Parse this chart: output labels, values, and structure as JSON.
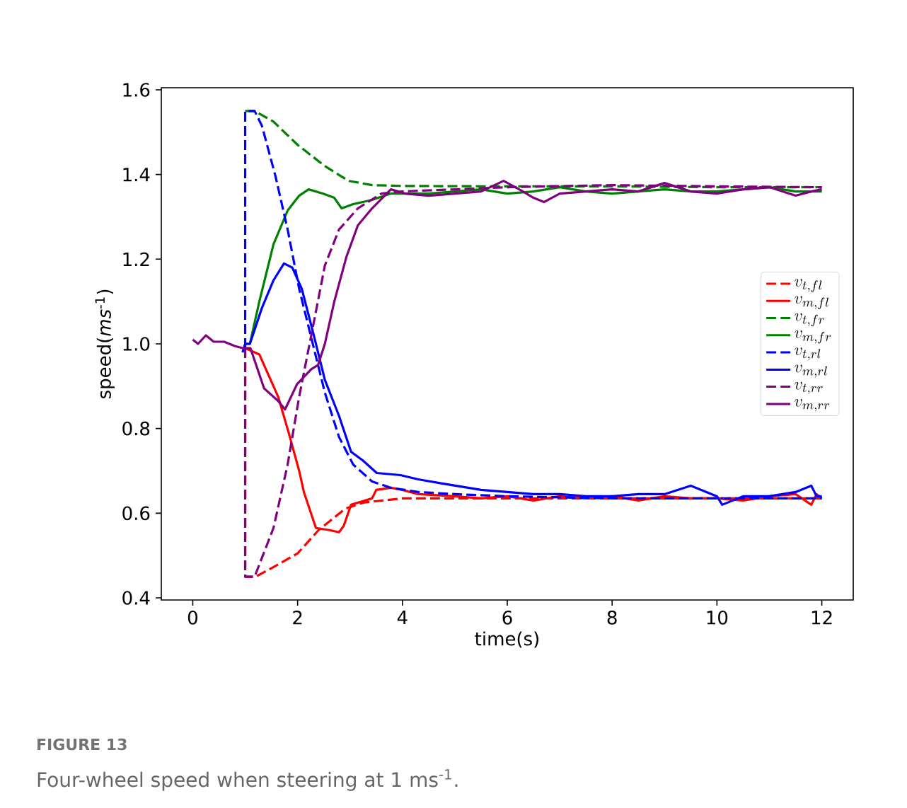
{
  "chart_data": {
    "type": "line",
    "xlabel": "time(s)",
    "ylabel": "speed(*ms*$^{-1}$)",
    "xlim": [
      -0.6,
      12.6
    ],
    "ylim": [
      0.395,
      1.605
    ],
    "xticks": [
      0,
      2,
      4,
      6,
      8,
      10,
      12
    ],
    "yticks": [
      0.4,
      0.6,
      0.8,
      {
        "value": 1.0,
        "label": "1.0"
      },
      1.2,
      1.4,
      1.6
    ],
    "legend": "right",
    "annotations": [
      "FIGURE 13",
      "Four-wheel speed when steering at 1 ms$^{-1}$."
    ],
    "series": [
      {
        "name": "v_{t,fl}",
        "color": "#ff0000",
        "line_style": "dashed",
        "x": [
          1.0,
          1.0,
          1.2,
          1.5,
          2.0,
          2.4,
          2.9,
          3.25,
          4,
          5,
          6,
          8,
          10,
          12
        ],
        "values": [
          0.99,
          0.45,
          0.45,
          0.47,
          0.505,
          0.56,
          0.61,
          0.625,
          0.635,
          0.635,
          0.635,
          0.635,
          0.635,
          0.635
        ]
      },
      {
        "name": "v_{m,fl}",
        "color": "#ff0000",
        "line_style": "solid",
        "x": [
          1.0,
          1.27,
          1.63,
          1.83,
          2.03,
          2.12,
          2.35,
          2.61,
          2.79,
          2.88,
          3.02,
          3.42,
          3.5,
          3.78,
          4,
          4.3,
          5,
          5.5,
          6,
          6.5,
          7,
          7.5,
          8,
          8.5,
          9,
          9.5,
          10,
          10.5,
          11,
          11.5,
          11.8,
          11.9,
          12
        ],
        "values": [
          0.99,
          0.975,
          0.875,
          0.79,
          0.7,
          0.65,
          0.565,
          0.56,
          0.555,
          0.57,
          0.62,
          0.635,
          0.655,
          0.66,
          0.655,
          0.645,
          0.64,
          0.635,
          0.64,
          0.63,
          0.64,
          0.635,
          0.64,
          0.63,
          0.64,
          0.635,
          0.635,
          0.63,
          0.64,
          0.645,
          0.62,
          0.645,
          0.635
        ]
      },
      {
        "name": "v_{t,fr}",
        "color": "#008000",
        "line_style": "dashed",
        "x": [
          1.0,
          1.18,
          1.54,
          2.0,
          2.52,
          2.97,
          3.42,
          4,
          6,
          8,
          10,
          12
        ],
        "values": [
          1.55,
          1.55,
          1.525,
          1.47,
          1.42,
          1.385,
          1.375,
          1.373,
          1.372,
          1.372,
          1.37,
          1.37
        ]
      },
      {
        "name": "v_{m,fr}",
        "color": "#008000",
        "line_style": "solid",
        "x": [
          1.0,
          1.09,
          1.27,
          1.54,
          1.81,
          2.03,
          2.21,
          2.48,
          2.7,
          2.84,
          3.06,
          3.42,
          3.78,
          4.5,
          5,
          5.5,
          6,
          6.5,
          7,
          7.5,
          8,
          8.5,
          9,
          9.5,
          10,
          10.5,
          11,
          11.5,
          12
        ],
        "values": [
          1.0,
          1.0,
          1.1,
          1.235,
          1.315,
          1.35,
          1.365,
          1.355,
          1.345,
          1.32,
          1.33,
          1.34,
          1.355,
          1.355,
          1.36,
          1.365,
          1.355,
          1.36,
          1.37,
          1.36,
          1.355,
          1.36,
          1.365,
          1.36,
          1.36,
          1.365,
          1.37,
          1.36,
          1.36
        ]
      },
      {
        "name": "v_{t,rl}",
        "color": "#0000ff",
        "line_style": "dashed",
        "x": [
          1.0,
          1.0,
          1.18,
          1.32,
          1.58,
          1.81,
          2.03,
          2.26,
          2.52,
          2.79,
          3.06,
          3.42,
          3.78,
          4.3,
          5,
          6,
          8,
          10,
          12
        ],
        "values": [
          0.99,
          1.55,
          1.55,
          1.515,
          1.395,
          1.27,
          1.13,
          1.015,
          0.885,
          0.78,
          0.715,
          0.675,
          0.66,
          0.65,
          0.645,
          0.64,
          0.635,
          0.635,
          0.635
        ]
      },
      {
        "name": "v_{m,rl}",
        "color": "#0000ff",
        "line_style": "solid",
        "x": [
          0.95,
          1.0,
          1.09,
          1.32,
          1.54,
          1.74,
          1.9,
          2.08,
          2.3,
          2.52,
          2.79,
          3.02,
          3.24,
          3.51,
          3.96,
          4.3,
          4.76,
          5.5,
          6,
          6.5,
          7,
          7.5,
          8,
          8.5,
          9,
          9.5,
          9.8,
          10,
          10.1,
          10.5,
          11,
          11.5,
          11.8,
          11.9,
          12
        ],
        "values": [
          0.98,
          1.0,
          1.0,
          1.085,
          1.15,
          1.19,
          1.18,
          1.13,
          1.025,
          0.915,
          0.83,
          0.745,
          0.725,
          0.695,
          0.69,
          0.68,
          0.67,
          0.655,
          0.65,
          0.645,
          0.645,
          0.64,
          0.64,
          0.645,
          0.645,
          0.665,
          0.65,
          0.64,
          0.62,
          0.64,
          0.64,
          0.65,
          0.665,
          0.64,
          0.64
        ]
      },
      {
        "name": "v_{t,rr}",
        "color": "#800080",
        "line_style": "dashed",
        "x": [
          1.0,
          1.0,
          1.18,
          1.54,
          1.81,
          2.03,
          2.3,
          2.52,
          2.79,
          3.15,
          3.6,
          4,
          5,
          6,
          8,
          10,
          12
        ],
        "values": [
          0.99,
          0.45,
          0.45,
          0.565,
          0.715,
          0.875,
          1.045,
          1.185,
          1.27,
          1.32,
          1.355,
          1.36,
          1.365,
          1.37,
          1.375,
          1.372,
          1.37
        ]
      },
      {
        "name": "v_{m,rr}",
        "color": "#800080",
        "line_style": "solid",
        "x": [
          0,
          0.1,
          0.25,
          0.4,
          0.6,
          0.8,
          0.95,
          1.0,
          1.1,
          1.36,
          1.63,
          1.76,
          1.99,
          2.26,
          2.39,
          2.52,
          2.7,
          2.93,
          3.15,
          3.42,
          3.78,
          4.05,
          4.5,
          5,
          5.5,
          5.93,
          6.3,
          6.5,
          6.7,
          7,
          7.5,
          8,
          8.5,
          9,
          9.5,
          10,
          10.5,
          11,
          11.5,
          11.8,
          12
        ],
        "values": [
          1.01,
          1.0,
          1.02,
          1.005,
          1.005,
          0.995,
          0.99,
          0.99,
          0.99,
          0.895,
          0.865,
          0.845,
          0.905,
          0.94,
          0.95,
          1.0,
          1.1,
          1.205,
          1.28,
          1.32,
          1.365,
          1.355,
          1.35,
          1.355,
          1.36,
          1.385,
          1.36,
          1.345,
          1.335,
          1.355,
          1.36,
          1.365,
          1.36,
          1.38,
          1.36,
          1.355,
          1.365,
          1.37,
          1.35,
          1.36,
          1.365
        ]
      }
    ]
  }
}
